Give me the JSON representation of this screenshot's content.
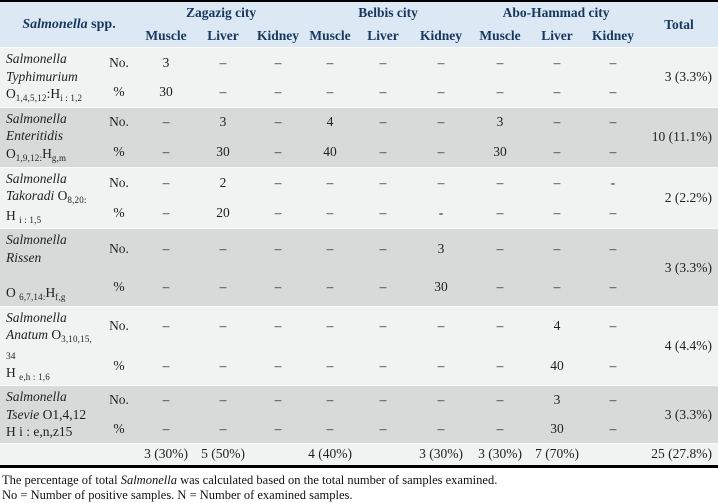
{
  "header": {
    "species": [
      {
        "t": "Salmonella",
        "i": 1
      },
      {
        "t": " spp."
      }
    ],
    "cities": [
      "Zagazig city",
      "Belbis city",
      "Abo-Hammad city"
    ],
    "tissues": [
      "Muscle",
      "Liver",
      "Kidney",
      "Muscle",
      "Liver",
      "Kidney",
      "Muscle",
      "Liver",
      "Kidney"
    ],
    "total_label": "Total"
  },
  "metrics": {
    "count": "No.",
    "percent": "%"
  },
  "rows": [
    {
      "species_lines": [
        [
          {
            "t": "Salmonella",
            "i": 1
          }
        ],
        [
          {
            "t": "Typhimurium",
            "i": 1
          }
        ],
        [
          {
            "t": "O"
          },
          {
            "t": "1,4,5,12",
            "s": 1
          },
          {
            "t": ":H"
          },
          {
            "t": "i : 1,2",
            "s": 1
          }
        ]
      ],
      "no": [
        "3",
        "–",
        "–",
        "–",
        "–",
        "–",
        "–",
        "–",
        "–"
      ],
      "pct": [
        "30",
        "–",
        "–",
        "–",
        "–",
        "–",
        "–",
        "–",
        "–"
      ],
      "total": "3 (3.3%)",
      "shade": "light"
    },
    {
      "species_lines": [
        [
          {
            "t": "Salmonella",
            "i": 1
          }
        ],
        [
          {
            "t": "Enteritidis",
            "i": 1
          }
        ],
        [
          {
            "t": "O"
          },
          {
            "t": "1,9,12:",
            "s": 1
          },
          {
            "t": "H"
          },
          {
            "t": "g,m",
            "s": 1
          }
        ]
      ],
      "no": [
        "–",
        "3",
        "–",
        "4",
        "–",
        "–",
        "3",
        "–",
        "–"
      ],
      "pct": [
        "–",
        "30",
        "–",
        "40",
        "–",
        "–",
        "30",
        "–",
        "–"
      ],
      "total": "10 (11.1%)",
      "shade": "gray"
    },
    {
      "species_lines": [
        [
          {
            "t": "Salmonella",
            "i": 1
          }
        ],
        [
          {
            "t": "Takoradi",
            "i": 1
          },
          {
            "t": " O"
          },
          {
            "t": "8,20:",
            "s": 1
          }
        ],
        [
          {
            "t": "H "
          },
          {
            "t": "i : 1,5",
            "s": 1
          }
        ]
      ],
      "no": [
        "–",
        "2",
        "–",
        "–",
        "–",
        "–",
        "–",
        "–",
        "-"
      ],
      "pct": [
        "–",
        "20",
        "–",
        "–",
        "–",
        "-",
        "–",
        "–",
        "–"
      ],
      "total": "2 (2.2%)",
      "shade": "light"
    },
    {
      "species_lines": [
        [
          {
            "t": "Salmonella",
            "i": 1
          }
        ],
        [
          {
            "t": "Rissen",
            "i": 1
          }
        ],
        [
          {
            "t": " "
          }
        ],
        [
          {
            "t": "O "
          },
          {
            "t": "6,7,14:",
            "s": 1
          },
          {
            "t": "H"
          },
          {
            "t": "f,g",
            "s": 1
          }
        ]
      ],
      "no": [
        "–",
        "–",
        "–",
        "–",
        "–",
        "3",
        "–",
        "–",
        "–"
      ],
      "pct": [
        "–",
        "–",
        "–",
        "–",
        "–",
        "30",
        "–",
        "–",
        "–"
      ],
      "total": "3 (3.3%)",
      "shade": "gray"
    },
    {
      "species_lines": [
        [
          {
            "t": "Salmonella",
            "i": 1
          }
        ],
        [
          {
            "t": "Anatum",
            "i": 1
          },
          {
            "t": " O"
          },
          {
            "t": "3,10,15,",
            "s": 1
          }
        ],
        [
          {
            "t": "34",
            "m": 1
          }
        ],
        [
          {
            "t": "H "
          },
          {
            "t": "e,h : 1,6",
            "s": 1
          }
        ]
      ],
      "no": [
        "–",
        "–",
        "–",
        "–",
        "–",
        "–",
        "–",
        "4",
        "–"
      ],
      "pct": [
        "–",
        "–",
        "–",
        "–",
        "–",
        "–",
        "–",
        "40",
        "–"
      ],
      "total": "4 (4.4%)",
      "shade": "light"
    },
    {
      "species_lines": [
        [
          {
            "t": "Salmonella",
            "i": 1
          }
        ],
        [
          {
            "t": "Tsevie",
            "i": 1
          },
          {
            "t": " O1,4,12"
          }
        ],
        [
          {
            "t": "H i : e,n,z15"
          }
        ]
      ],
      "no": [
        "–",
        "–",
        "–",
        "–",
        "–",
        "–",
        "–",
        "3",
        "–"
      ],
      "pct": [
        "–",
        "–",
        "–",
        "–",
        "–",
        "–",
        "–",
        "30",
        "–"
      ],
      "total": "3 (3.3%)",
      "shade": "gray"
    }
  ],
  "footer": {
    "values": [
      "3 (30%)",
      "5 (50%)",
      "",
      "4 (40%)",
      "",
      "3 (30%)",
      "3 (30%)",
      "7 (70%)",
      ""
    ],
    "total": "25 (27.8%)"
  },
  "footnotes": {
    "line1": [
      {
        "t": "The percentage of total "
      },
      {
        "t": "Salmonella",
        "i": 1
      },
      {
        "t": " was calculated based on the total number of samples examined."
      }
    ],
    "line2": [
      {
        "t": "No = Number of positive samples. N = Number of examined samples."
      }
    ]
  },
  "colors": {
    "header_bg": "#dce9f4",
    "row_light": "#f1f2f2",
    "row_gray": "#d8dada",
    "header_text": "#17375d",
    "body_text": "#1f1f1f",
    "border": "#000000"
  }
}
